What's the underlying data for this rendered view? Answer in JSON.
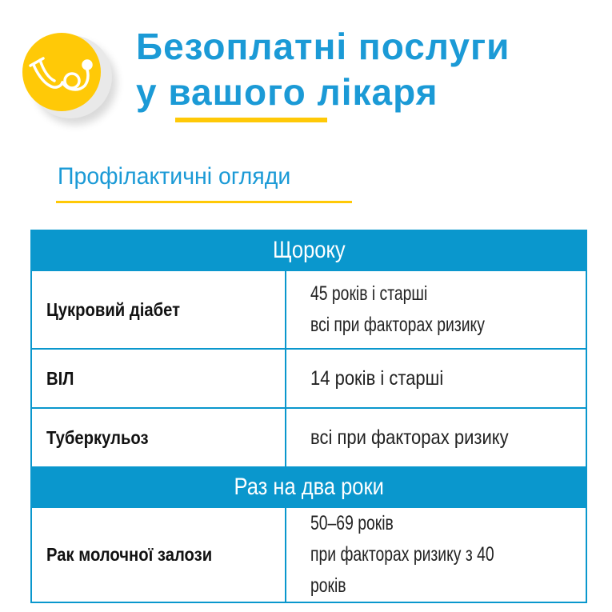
{
  "header": {
    "title_line1": "Безоплатні послуги",
    "title_line2_prefix": "у ",
    "title_line2_highlight": "вашого",
    "title_line2_suffix": " лікаря",
    "icon": "stethoscope-icon"
  },
  "subtitle": "Профілактичні огляди",
  "colors": {
    "blue": "#1b9ad6",
    "table_blue": "#0a97cd",
    "yellow": "#ffc907"
  },
  "sections": [
    {
      "heading": "Щороку",
      "rows": [
        {
          "name": "Цукровий діабет",
          "lines": [
            "45 років і старші",
            "всі при факторах ризику"
          ]
        },
        {
          "name": "ВІЛ",
          "lines": [
            "14 років і старші"
          ]
        },
        {
          "name": "Туберкульоз",
          "lines": [
            "всі при факторах ризику"
          ]
        }
      ]
    },
    {
      "heading": "Раз на два роки",
      "rows": [
        {
          "name": "Рак молочної залози",
          "lines": [
            "50–69 років",
            "при факторах ризику з 40 років"
          ]
        }
      ]
    }
  ]
}
